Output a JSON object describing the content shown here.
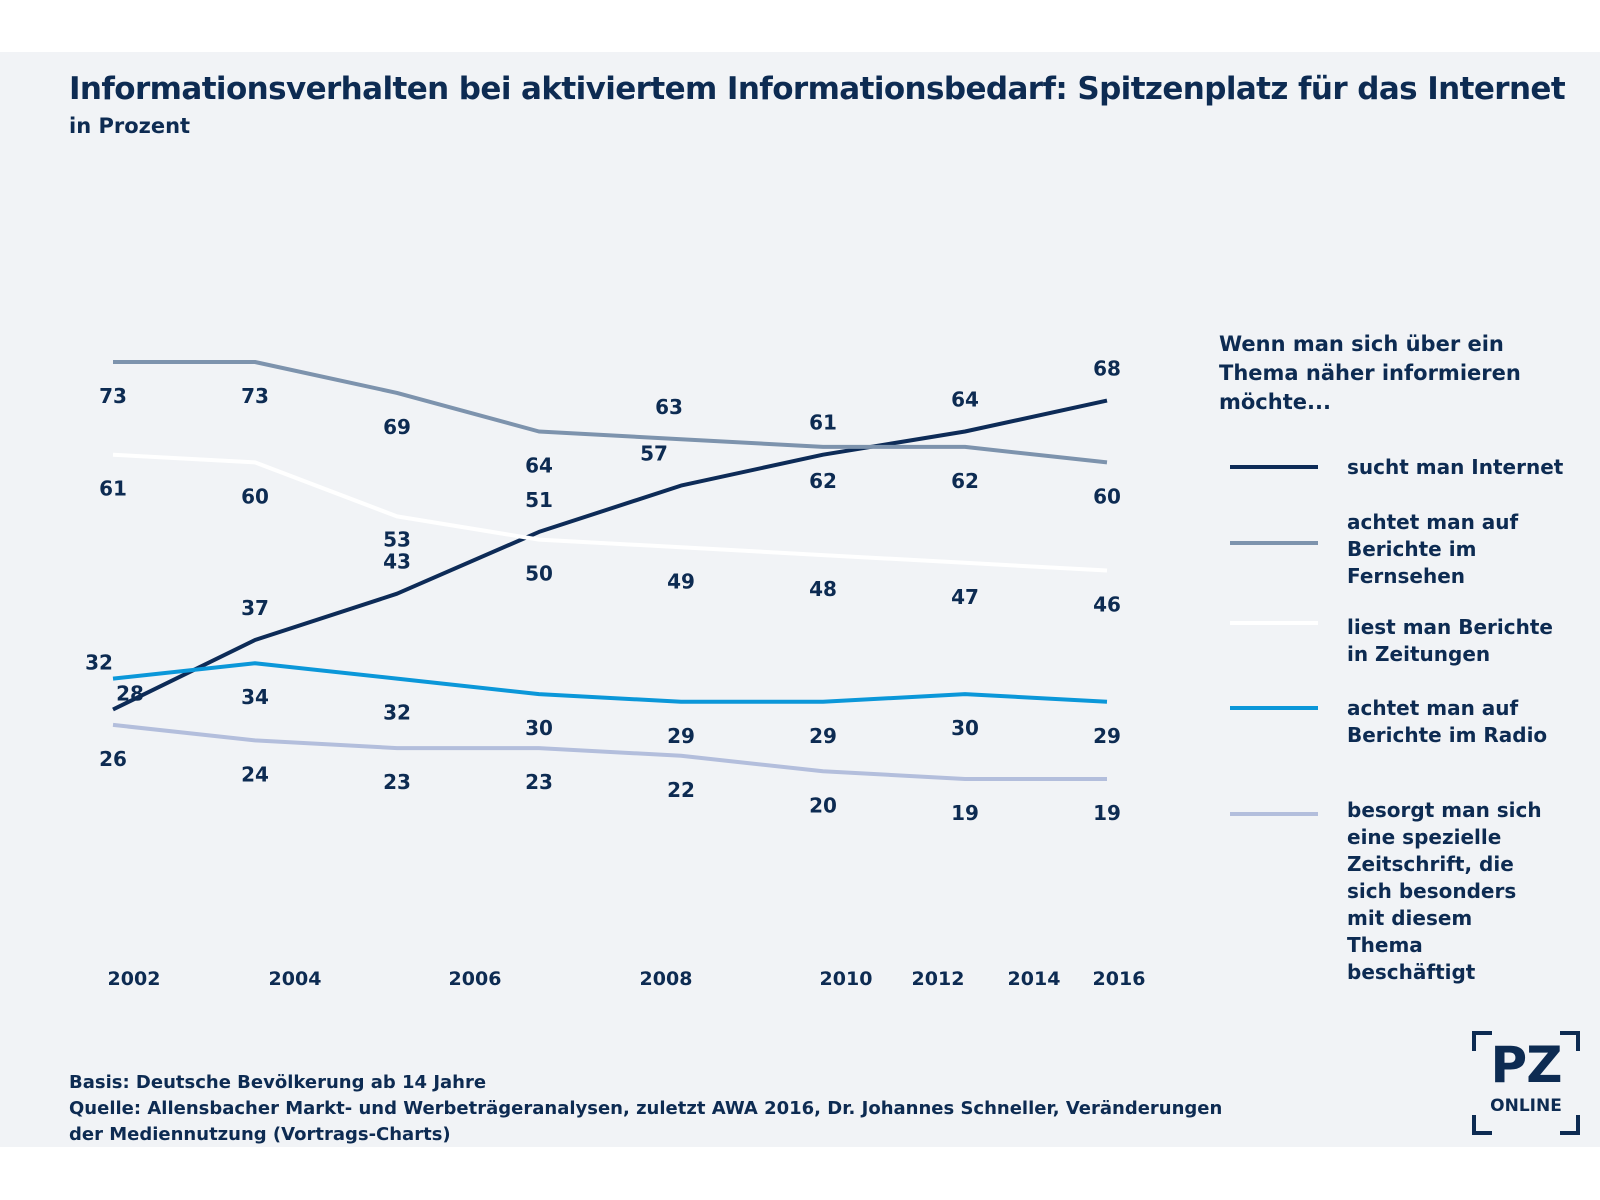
{
  "title": "Informationsverhalten bei aktiviertem Informationsbedarf: Spitzenplatz für das Internet",
  "subtitle": "in Prozent",
  "legend": {
    "heading": "Wenn man sich über ein Thema näher informieren möchte..."
  },
  "footer": {
    "basis": "Basis: Deutsche Bevölkerung ab 14 Jahre",
    "source": "Quelle: Allensbacher Markt- und Werbeträgeranalysen, zuletzt AWA 2016, Dr. Johannes Schneller, Veränderungen der Mediennutzung (Vortrags-Charts)"
  },
  "logo": {
    "main": "PZ",
    "sub": "ONLINE"
  },
  "colors": {
    "background": "#f1f3f6",
    "text": "#0d2b52"
  },
  "chart_data": {
    "type": "line",
    "title": "Informationsverhalten bei aktiviertem Informationsbedarf: Spitzenplatz für das Internet",
    "ylabel": "in Prozent",
    "x_tick_labels": [
      "2002",
      "2004",
      "2006",
      "2008",
      "2010",
      "2012",
      "2014",
      "2016"
    ],
    "ylim": [
      19,
      73
    ],
    "grid": false,
    "legend_position": "right",
    "series": [
      {
        "name": "sucht man Internet",
        "color": "#0d2b57",
        "values": [
          28,
          37,
          43,
          51,
          57,
          61,
          64,
          68
        ]
      },
      {
        "name": "achtet man auf Berichte im Fernsehen",
        "color": "#7d93ad",
        "values": [
          73,
          73,
          69,
          64,
          63,
          62,
          62,
          60
        ]
      },
      {
        "name": "liest man Berichte in Zeitungen",
        "color": "#ffffff",
        "values": [
          61,
          60,
          53,
          50,
          49,
          48,
          47,
          46
        ]
      },
      {
        "name": "achtet man auf Berichte im Radio",
        "color": "#0b97d9",
        "values": [
          32,
          34,
          32,
          30,
          29,
          29,
          30,
          29
        ]
      },
      {
        "name": "besorgt man sich eine spezielle Zeitschrift, die sich besonders mit diesem Thema beschäftigt",
        "color": "#b3bedc",
        "values": [
          26,
          24,
          23,
          23,
          22,
          20,
          19,
          19
        ]
      }
    ]
  }
}
